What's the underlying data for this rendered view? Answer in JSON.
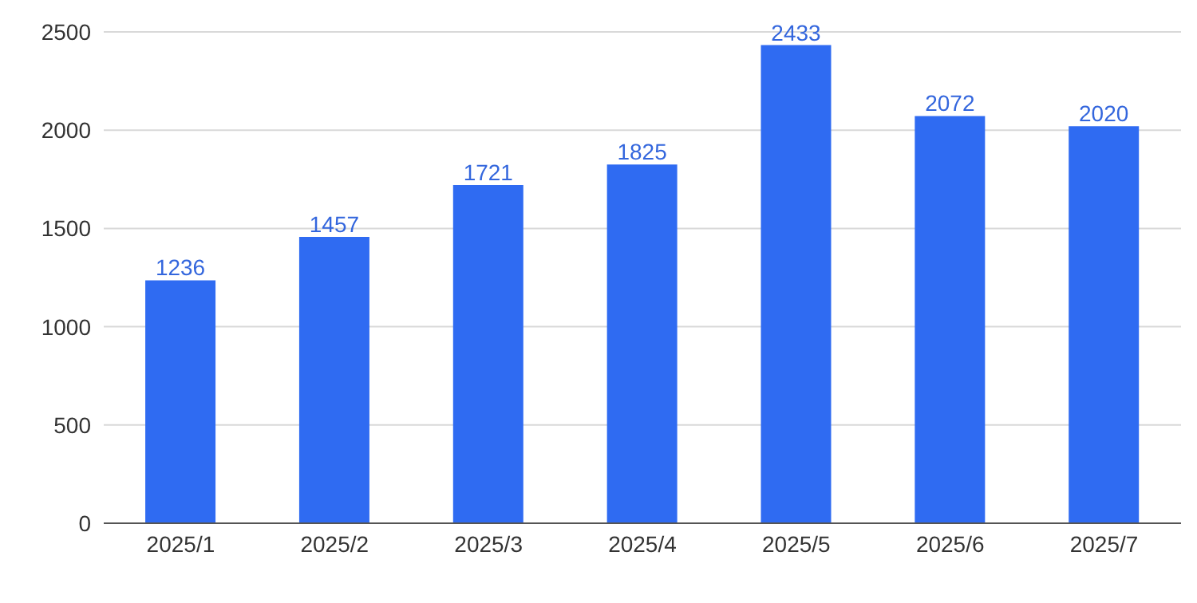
{
  "chart_data": {
    "type": "bar",
    "categories": [
      "2025/1",
      "2025/2",
      "2025/3",
      "2025/4",
      "2025/5",
      "2025/6",
      "2025/7"
    ],
    "values": [
      1236,
      1457,
      1721,
      1825,
      2433,
      2072,
      2020
    ],
    "color": "#2f6bf2",
    "ylim": [
      0,
      2500
    ],
    "yticks": [
      0,
      500,
      1000,
      1500,
      2000,
      2500
    ],
    "grid": "y",
    "data_labels": true
  }
}
